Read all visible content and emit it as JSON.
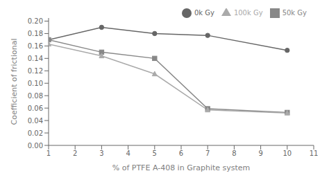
{
  "chart_data": {
    "type": "line",
    "x": [
      1,
      3,
      5,
      7,
      10
    ],
    "series": [
      {
        "name": "0k Gy",
        "color": "#666666",
        "marker": "circle",
        "values": [
          0.17,
          0.19,
          0.18,
          0.177,
          0.153
        ]
      },
      {
        "name": "50k Gy",
        "color": "#888888",
        "marker": "square",
        "values": [
          0.17,
          0.15,
          0.14,
          0.059,
          0.053
        ]
      },
      {
        "name": "100k Gy",
        "color": "#aaaaaa",
        "marker": "triangle",
        "values": [
          0.163,
          0.144,
          0.115,
          0.057,
          0.052
        ]
      }
    ],
    "x_label": "% of PTFE A-408 in Graphite system",
    "y_label": "Coefficient of frictional",
    "xlim": [
      1,
      11
    ],
    "ylim": [
      0.0,
      0.205
    ],
    "xticks": [
      1,
      2,
      3,
      4,
      5,
      6,
      7,
      8,
      9,
      10,
      11
    ],
    "yticks": [
      {
        "value": 0.0,
        "label": "0.00"
      },
      0.02,
      0.04,
      0.06,
      0.08,
      {
        "value": 0.1,
        "label": "0.10"
      },
      0.12,
      0.14,
      0.16,
      0.18,
      {
        "value": 0.2,
        "label": "0.20"
      }
    ],
    "legend": "upper right",
    "grid": false
  }
}
